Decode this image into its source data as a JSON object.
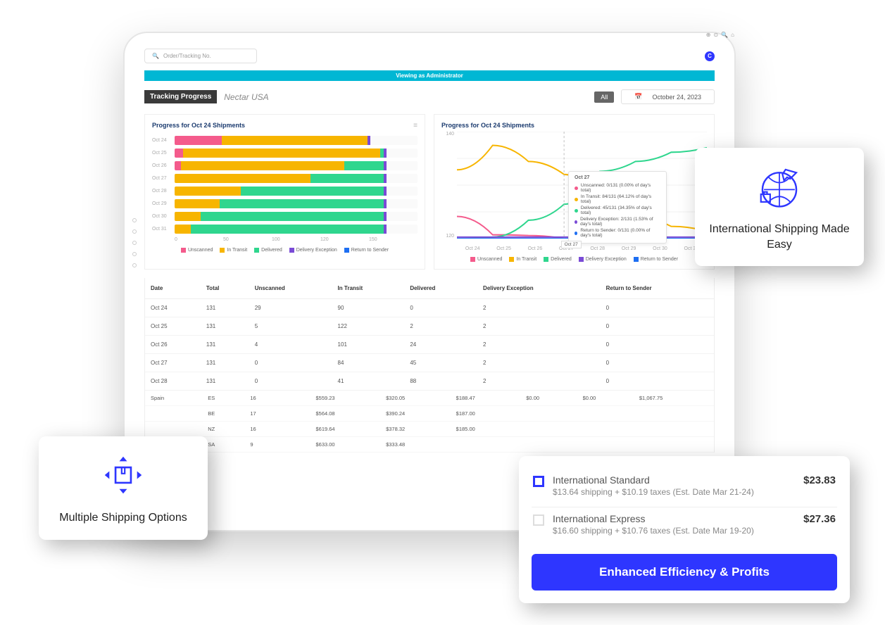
{
  "colors": {
    "accent": "#2e36ff",
    "banner": "#00b7d4",
    "unscanned": "#f45b8c",
    "in_transit": "#f7b500",
    "delivered": "#2fd68e",
    "delivery_exception": "#7a4bd6",
    "return_to_sender": "#1e6ff2",
    "grid": "#f0f0f0",
    "text_muted": "#888888"
  },
  "header": {
    "search_placeholder": "Order/Tracking No.",
    "avatar_letter": "C",
    "banner_text": "Viewing as Administrator",
    "title_chip": "Tracking Progress",
    "company": "Nectar USA",
    "all_chip": "All",
    "date_label": "October 24, 2023"
  },
  "panels": {
    "left_title": "Progress for Oct 24 Shipments",
    "right_title": "Progress for Oct 24 Shipments"
  },
  "bar_chart": {
    "x_ticks": [
      "0",
      "50",
      "100",
      "120",
      "150"
    ],
    "rows": [
      {
        "label": "Oct 24",
        "unscanned": 29,
        "in_transit": 90,
        "delivered": 0,
        "exception": 2,
        "return": 0,
        "total": 131
      },
      {
        "label": "Oct 25",
        "unscanned": 5,
        "in_transit": 122,
        "delivered": 2,
        "exception": 2,
        "return": 0,
        "total": 131
      },
      {
        "label": "Oct 26",
        "unscanned": 4,
        "in_transit": 101,
        "delivered": 24,
        "exception": 2,
        "return": 0,
        "total": 131
      },
      {
        "label": "Oct 27",
        "unscanned": 0,
        "in_transit": 84,
        "delivered": 45,
        "exception": 2,
        "return": 0,
        "total": 131
      },
      {
        "label": "Oct 28",
        "unscanned": 0,
        "in_transit": 41,
        "delivered": 88,
        "exception": 2,
        "return": 0,
        "total": 131
      },
      {
        "label": "Oct 29",
        "unscanned": 0,
        "in_transit": 28,
        "delivered": 101,
        "exception": 2,
        "return": 0,
        "total": 131
      },
      {
        "label": "Oct 30",
        "unscanned": 0,
        "in_transit": 16,
        "delivered": 113,
        "exception": 2,
        "return": 0,
        "total": 131
      },
      {
        "label": "Oct 31",
        "unscanned": 0,
        "in_transit": 10,
        "delivered": 119,
        "exception": 2,
        "return": 0,
        "total": 131
      }
    ]
  },
  "legend": {
    "items": [
      {
        "label": "Unscanned",
        "color_key": "unscanned"
      },
      {
        "label": "In Transit",
        "color_key": "in_transit"
      },
      {
        "label": "Delivered",
        "color_key": "delivered"
      },
      {
        "label": "Delivery Exception",
        "color_key": "delivery_exception"
      },
      {
        "label": "Return to Sender",
        "color_key": "return_to_sender"
      }
    ]
  },
  "line_chart": {
    "y_ticks": [
      "140",
      "120"
    ],
    "x_labels": [
      "Oct 24",
      "Oct 25",
      "Oct 26",
      "Oct 27",
      "Oct 28",
      "Oct 29",
      "Oct 30",
      "Oct 31"
    ],
    "series": {
      "unscanned": [
        29,
        5,
        4,
        0,
        0,
        0,
        0,
        0
      ],
      "in_transit": [
        90,
        122,
        101,
        84,
        41,
        28,
        16,
        10
      ],
      "delivered": [
        0,
        2,
        24,
        45,
        88,
        101,
        113,
        119
      ],
      "exception": [
        2,
        2,
        2,
        2,
        2,
        2,
        2,
        2
      ],
      "return": [
        0,
        0,
        0,
        0,
        0,
        0,
        0,
        0
      ]
    },
    "ymax": 140,
    "tooltip": {
      "title": "Oct 27",
      "rows": [
        {
          "color_key": "unscanned",
          "text": "Unscanned:  0/131 (0.00% of day's total)"
        },
        {
          "color_key": "in_transit",
          "text": "In Transit:  84/131 (64.12% of day's total)"
        },
        {
          "color_key": "delivered",
          "text": "Delivered:  45/131 (34.35% of day's total)"
        },
        {
          "color_key": "delivery_exception",
          "text": "Delivery Exception:  2/131 (1.53% of day's total)"
        },
        {
          "color_key": "return_to_sender",
          "text": "Return to Sender:  0/131 (0.00% of day's total)"
        }
      ],
      "marker_label": "Oct 27"
    }
  },
  "table": {
    "columns": [
      "Date",
      "Total",
      "Unscanned",
      "In Transit",
      "Delivered",
      "Delivery Exception",
      "Return to Sender"
    ],
    "rows": [
      [
        "Oct 24",
        "131",
        "29",
        "90",
        "0",
        "2",
        "0"
      ],
      [
        "Oct 25",
        "131",
        "5",
        "122",
        "2",
        "2",
        "0"
      ],
      [
        "Oct 26",
        "131",
        "4",
        "101",
        "24",
        "2",
        "0"
      ],
      [
        "Oct 27",
        "131",
        "0",
        "84",
        "45",
        "2",
        "0"
      ],
      [
        "Oct 28",
        "131",
        "0",
        "41",
        "88",
        "2",
        "0"
      ]
    ]
  },
  "summary_table": {
    "rows": [
      [
        "Spain",
        "ES",
        "16",
        "",
        "$559.23",
        "$320.05",
        "$188.47",
        "$0.00",
        "$0.00",
        "$1,067.75"
      ],
      [
        "",
        "BE",
        "17",
        "",
        "$564.08",
        "$390.24",
        "$187.00",
        "",
        "",
        ""
      ],
      [
        "",
        "NZ",
        "16",
        "",
        "$619.64",
        "$378.32",
        "$185.00",
        "",
        "",
        ""
      ],
      [
        "",
        "SA",
        "9",
        "",
        "$633.00",
        "$333.48",
        "",
        "",
        "",
        ""
      ]
    ]
  },
  "card_intl": {
    "caption": "International Shipping Made Easy"
  },
  "card_multi": {
    "caption": "Multiple Shipping Options"
  },
  "card_ship": {
    "options": [
      {
        "name": "International Standard",
        "subtitle": "$13.64 shipping + $10.19 taxes (Est. Date Mar 21-24)",
        "price": "$23.83",
        "selected": true
      },
      {
        "name": "International Express",
        "subtitle": "$16.60 shipping + $10.76 taxes (Est. Date Mar 19-20)",
        "price": "$27.36",
        "selected": false
      }
    ],
    "cta": "Enhanced Efficiency & Profits"
  }
}
